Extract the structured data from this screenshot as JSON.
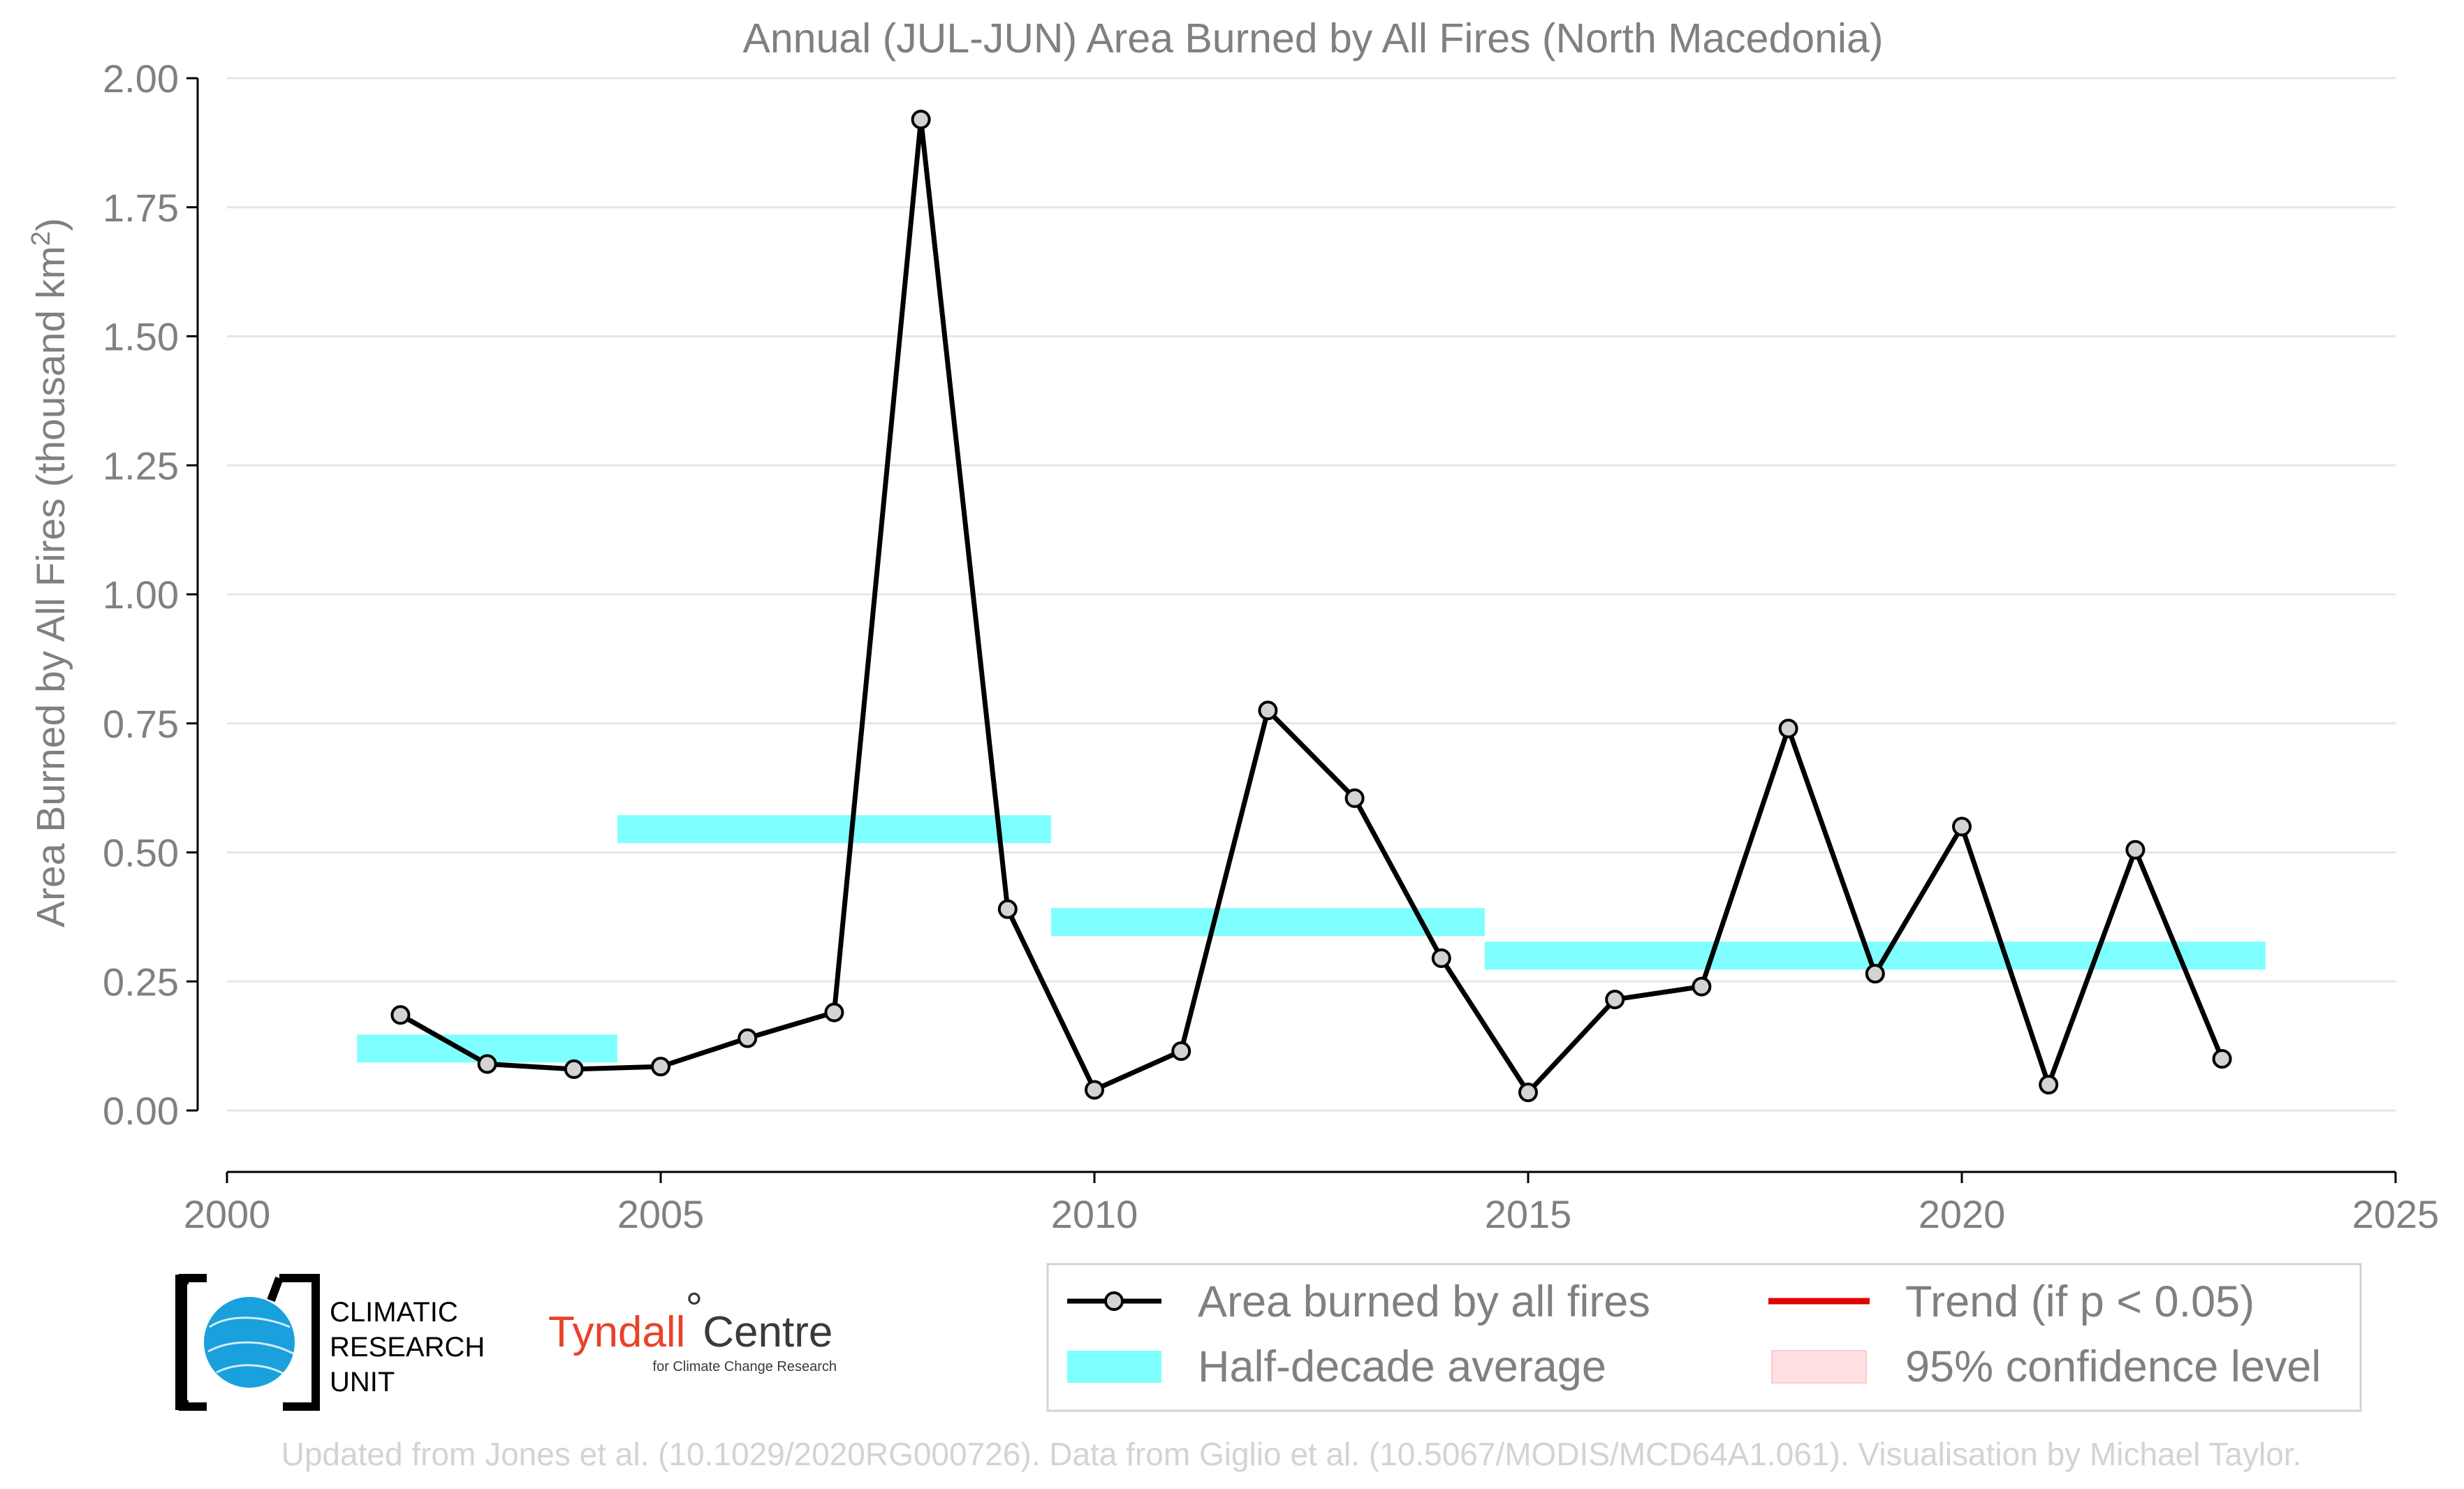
{
  "chart_data": {
    "type": "line",
    "title": "Annual (JUL-JUN) Area Burned by All Fires (North Macedonia)",
    "ylabel": "Area Burned by All Fires (thousand km",
    "ylabel_sup": "2",
    "ylabel_end": ")",
    "xlabel": "",
    "xlim": [
      2000,
      2025
    ],
    "ylim": [
      -0.1,
      2.0
    ],
    "x_ticks": [
      2000,
      2005,
      2010,
      2015,
      2020,
      2025
    ],
    "x_tick_labels": [
      "2000",
      "2005",
      "2010",
      "2015",
      "2020",
      "2025"
    ],
    "y_ticks": [
      0,
      0.25,
      0.5,
      0.75,
      1.0,
      1.25,
      1.5,
      1.75,
      2.0
    ],
    "y_tick_labels": [
      "0.00",
      "0.25",
      "0.50",
      "0.75",
      "1.00",
      "1.25",
      "1.50",
      "1.75",
      "2.00"
    ],
    "grid": "horizontal",
    "series": [
      {
        "name": "Area burned by all fires",
        "color": "#000000",
        "marker_fill": "#d3d3d3",
        "x": [
          2002,
          2003,
          2004,
          2005,
          2006,
          2007,
          2008,
          2009,
          2010,
          2011,
          2012,
          2013,
          2014,
          2015,
          2016,
          2017,
          2018,
          2019,
          2020,
          2021,
          2022,
          2023
        ],
        "y": [
          0.185,
          0.09,
          0.08,
          0.085,
          0.14,
          0.19,
          1.92,
          0.39,
          0.04,
          0.115,
          0.775,
          0.605,
          0.295,
          0.035,
          0.215,
          0.24,
          0.74,
          0.265,
          0.55,
          0.05,
          0.505,
          0.1
        ]
      }
    ],
    "half_decade_average": {
      "name": "Half-decade average",
      "color": "#7fffff",
      "segments": [
        {
          "x_start": 2001.5,
          "x_end": 2004.5,
          "value": 0.12
        },
        {
          "x_start": 2004.5,
          "x_end": 2009.5,
          "value": 0.545
        },
        {
          "x_start": 2009.5,
          "x_end": 2014.5,
          "value": 0.365
        },
        {
          "x_start": 2014.5,
          "x_end": 2019.5,
          "value": 0.3
        },
        {
          "x_start": 2019.5,
          "x_end": 2023.5,
          "value": 0.3
        }
      ]
    },
    "legend": {
      "placement": "bottom-right",
      "entries": [
        {
          "label": "Area burned by all fires",
          "kind": "line-marker",
          "color": "#000000"
        },
        {
          "label": "Trend (if p < 0.05)",
          "kind": "line",
          "color": "#e00000"
        },
        {
          "label": "Half-decade average",
          "kind": "band",
          "color": "#7fffff"
        },
        {
          "label": "95% confidence level",
          "kind": "band",
          "color": "#ffe0e3"
        }
      ]
    }
  },
  "logos": {
    "cru_text": [
      "CLIMATIC",
      "RESEARCH",
      "UNIT"
    ],
    "tyndall_main": "Tyndall",
    "tyndall_degree": "°",
    "tyndall_centre": "Centre",
    "tyndall_sub": "for Climate Change Research"
  },
  "footer": "Updated from Jones et al. (10.1029/2020RG000726). Data from Giglio et al. (10.5067/MODIS/MCD64A1.061). Visualisation by Michael Taylor."
}
